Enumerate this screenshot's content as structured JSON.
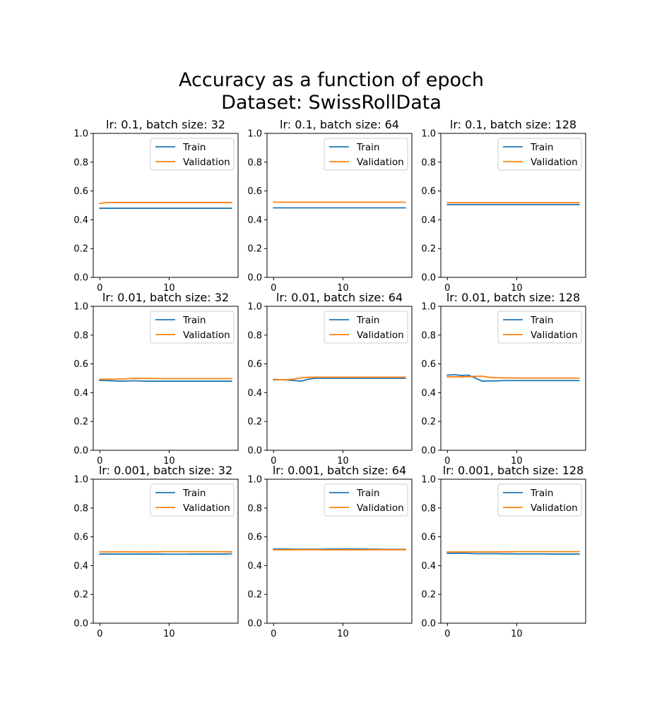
{
  "figure": {
    "title_line1": "Accuracy as a function of epoch",
    "title_line2": "Dataset: SwissRollData"
  },
  "colors": {
    "train": "#1f77b4",
    "validation": "#ff7f0e"
  },
  "chart_data": [
    {
      "type": "line",
      "title": "lr: 0.1, batch size: 32",
      "x": [
        0,
        1,
        2,
        3,
        4,
        5,
        6,
        7,
        8,
        9,
        10,
        11,
        12,
        13,
        14,
        15,
        16,
        17,
        18,
        19
      ],
      "xticks": [
        0,
        10
      ],
      "ylim": [
        0,
        1
      ],
      "yticks": [
        0.0,
        0.2,
        0.4,
        0.6,
        0.8,
        1.0
      ],
      "legend": "upper right",
      "series": [
        {
          "name": "Train",
          "values": [
            0.48,
            0.48,
            0.48,
            0.48,
            0.48,
            0.48,
            0.48,
            0.48,
            0.48,
            0.48,
            0.48,
            0.48,
            0.48,
            0.48,
            0.48,
            0.48,
            0.48,
            0.48,
            0.48,
            0.48
          ]
        },
        {
          "name": "Validation",
          "values": [
            0.513,
            0.52,
            0.52,
            0.52,
            0.52,
            0.52,
            0.52,
            0.52,
            0.52,
            0.52,
            0.52,
            0.52,
            0.52,
            0.52,
            0.52,
            0.52,
            0.52,
            0.52,
            0.52,
            0.52
          ]
        }
      ]
    },
    {
      "type": "line",
      "title": "lr: 0.1, batch size: 64",
      "x": [
        0,
        1,
        2,
        3,
        4,
        5,
        6,
        7,
        8,
        9,
        10,
        11,
        12,
        13,
        14,
        15,
        16,
        17,
        18,
        19
      ],
      "xticks": [
        0,
        10
      ],
      "ylim": [
        0,
        1
      ],
      "yticks": [
        0.0,
        0.2,
        0.4,
        0.6,
        0.8,
        1.0
      ],
      "legend": "upper right",
      "series": [
        {
          "name": "Train",
          "values": [
            0.483,
            0.483,
            0.483,
            0.483,
            0.483,
            0.483,
            0.483,
            0.483,
            0.483,
            0.483,
            0.483,
            0.483,
            0.483,
            0.483,
            0.483,
            0.483,
            0.483,
            0.483,
            0.483,
            0.483
          ]
        },
        {
          "name": "Validation",
          "values": [
            0.522,
            0.522,
            0.522,
            0.522,
            0.522,
            0.522,
            0.522,
            0.522,
            0.522,
            0.522,
            0.522,
            0.522,
            0.522,
            0.522,
            0.522,
            0.522,
            0.522,
            0.522,
            0.522,
            0.522
          ]
        }
      ]
    },
    {
      "type": "line",
      "title": "lr: 0.1, batch size: 128",
      "x": [
        0,
        1,
        2,
        3,
        4,
        5,
        6,
        7,
        8,
        9,
        10,
        11,
        12,
        13,
        14,
        15,
        16,
        17,
        18,
        19
      ],
      "xticks": [
        0,
        10
      ],
      "ylim": [
        0,
        1
      ],
      "yticks": [
        0.0,
        0.2,
        0.4,
        0.6,
        0.8,
        1.0
      ],
      "legend": "upper right",
      "series": [
        {
          "name": "Train",
          "values": [
            0.505,
            0.505,
            0.505,
            0.505,
            0.505,
            0.505,
            0.505,
            0.505,
            0.505,
            0.505,
            0.505,
            0.505,
            0.505,
            0.505,
            0.505,
            0.505,
            0.505,
            0.505,
            0.505,
            0.505
          ]
        },
        {
          "name": "Validation",
          "values": [
            0.518,
            0.518,
            0.518,
            0.518,
            0.518,
            0.518,
            0.518,
            0.518,
            0.518,
            0.518,
            0.518,
            0.518,
            0.518,
            0.518,
            0.518,
            0.518,
            0.518,
            0.518,
            0.518,
            0.518
          ]
        }
      ]
    },
    {
      "type": "line",
      "title": "lr: 0.01, batch size: 32",
      "x": [
        0,
        1,
        2,
        3,
        4,
        5,
        6,
        7,
        8,
        9,
        10,
        11,
        12,
        13,
        14,
        15,
        16,
        17,
        18,
        19
      ],
      "xticks": [
        0,
        10
      ],
      "ylim": [
        0,
        1
      ],
      "yticks": [
        0.0,
        0.2,
        0.4,
        0.6,
        0.8,
        1.0
      ],
      "legend": "upper right",
      "series": [
        {
          "name": "Train",
          "values": [
            0.485,
            0.484,
            0.482,
            0.48,
            0.481,
            0.483,
            0.481,
            0.48,
            0.48,
            0.48,
            0.48,
            0.48,
            0.48,
            0.48,
            0.48,
            0.48,
            0.48,
            0.48,
            0.48,
            0.48
          ]
        },
        {
          "name": "Validation",
          "values": [
            0.493,
            0.493,
            0.494,
            0.495,
            0.497,
            0.499,
            0.499,
            0.499,
            0.498,
            0.498,
            0.498,
            0.498,
            0.498,
            0.498,
            0.498,
            0.498,
            0.498,
            0.498,
            0.498,
            0.498
          ]
        }
      ]
    },
    {
      "type": "line",
      "title": "lr: 0.01, batch size: 64",
      "x": [
        0,
        1,
        2,
        3,
        4,
        5,
        6,
        7,
        8,
        9,
        10,
        11,
        12,
        13,
        14,
        15,
        16,
        17,
        18,
        19
      ],
      "xticks": [
        0,
        10
      ],
      "ylim": [
        0,
        1
      ],
      "yticks": [
        0.0,
        0.2,
        0.4,
        0.6,
        0.8,
        1.0
      ],
      "legend": "upper right",
      "series": [
        {
          "name": "Train",
          "values": [
            0.49,
            0.49,
            0.488,
            0.484,
            0.48,
            0.494,
            0.5,
            0.5,
            0.5,
            0.5,
            0.5,
            0.5,
            0.5,
            0.5,
            0.5,
            0.5,
            0.5,
            0.5,
            0.5,
            0.5
          ]
        },
        {
          "name": "Validation",
          "values": [
            0.493,
            0.49,
            0.49,
            0.495,
            0.503,
            0.507,
            0.508,
            0.508,
            0.508,
            0.508,
            0.508,
            0.508,
            0.508,
            0.508,
            0.508,
            0.508,
            0.508,
            0.508,
            0.508,
            0.508
          ]
        }
      ]
    },
    {
      "type": "line",
      "title": "lr: 0.01, batch size: 128",
      "x": [
        0,
        1,
        2,
        3,
        4,
        5,
        6,
        7,
        8,
        9,
        10,
        11,
        12,
        13,
        14,
        15,
        16,
        17,
        18,
        19
      ],
      "xticks": [
        0,
        10
      ],
      "ylim": [
        0,
        1
      ],
      "yticks": [
        0.0,
        0.2,
        0.4,
        0.6,
        0.8,
        1.0
      ],
      "legend": "upper right",
      "series": [
        {
          "name": "Train",
          "values": [
            0.522,
            0.525,
            0.52,
            0.522,
            0.503,
            0.48,
            0.482,
            0.482,
            0.484,
            0.484,
            0.484,
            0.484,
            0.484,
            0.484,
            0.484,
            0.484,
            0.484,
            0.484,
            0.484,
            0.484
          ]
        },
        {
          "name": "Validation",
          "values": [
            0.51,
            0.51,
            0.51,
            0.51,
            0.514,
            0.514,
            0.507,
            0.505,
            0.503,
            0.503,
            0.502,
            0.502,
            0.502,
            0.502,
            0.502,
            0.502,
            0.502,
            0.502,
            0.502,
            0.502
          ]
        }
      ]
    },
    {
      "type": "line",
      "title": "lr: 0.001, batch size: 32",
      "x": [
        0,
        1,
        2,
        3,
        4,
        5,
        6,
        7,
        8,
        9,
        10,
        11,
        12,
        13,
        14,
        15,
        16,
        17,
        18,
        19
      ],
      "xticks": [
        0,
        10
      ],
      "ylim": [
        0,
        1
      ],
      "yticks": [
        0.0,
        0.2,
        0.4,
        0.6,
        0.8,
        1.0
      ],
      "legend": "upper right",
      "series": [
        {
          "name": "Train",
          "values": [
            0.48,
            0.48,
            0.48,
            0.48,
            0.48,
            0.48,
            0.48,
            0.48,
            0.48,
            0.48,
            0.479,
            0.479,
            0.479,
            0.48,
            0.48,
            0.48,
            0.48,
            0.48,
            0.48,
            0.482
          ]
        },
        {
          "name": "Validation",
          "values": [
            0.495,
            0.495,
            0.495,
            0.496,
            0.496,
            0.495,
            0.495,
            0.495,
            0.496,
            0.497,
            0.497,
            0.497,
            0.497,
            0.497,
            0.497,
            0.497,
            0.497,
            0.497,
            0.496,
            0.496
          ]
        }
      ]
    },
    {
      "type": "line",
      "title": "lr: 0.001, batch size: 64",
      "x": [
        0,
        1,
        2,
        3,
        4,
        5,
        6,
        7,
        8,
        9,
        10,
        11,
        12,
        13,
        14,
        15,
        16,
        17,
        18,
        19
      ],
      "xticks": [
        0,
        10
      ],
      "ylim": [
        0,
        1
      ],
      "yticks": [
        0.0,
        0.2,
        0.4,
        0.6,
        0.8,
        1.0
      ],
      "legend": "upper right",
      "series": [
        {
          "name": "Train",
          "values": [
            0.515,
            0.515,
            0.515,
            0.514,
            0.514,
            0.514,
            0.514,
            0.514,
            0.515,
            0.515,
            0.516,
            0.516,
            0.515,
            0.515,
            0.514,
            0.514,
            0.513,
            0.513,
            0.513,
            0.513
          ]
        },
        {
          "name": "Validation",
          "values": [
            0.51,
            0.51,
            0.51,
            0.51,
            0.51,
            0.51,
            0.51,
            0.51,
            0.51,
            0.51,
            0.51,
            0.51,
            0.51,
            0.51,
            0.51,
            0.51,
            0.51,
            0.51,
            0.51,
            0.51
          ]
        }
      ]
    },
    {
      "type": "line",
      "title": "lr: 0.001, batch size: 128",
      "x": [
        0,
        1,
        2,
        3,
        4,
        5,
        6,
        7,
        8,
        9,
        10,
        11,
        12,
        13,
        14,
        15,
        16,
        17,
        18,
        19
      ],
      "xticks": [
        0,
        10
      ],
      "ylim": [
        0,
        1
      ],
      "yticks": [
        0.0,
        0.2,
        0.4,
        0.6,
        0.8,
        1.0
      ],
      "legend": "upper right",
      "series": [
        {
          "name": "Train",
          "values": [
            0.485,
            0.485,
            0.486,
            0.485,
            0.483,
            0.483,
            0.483,
            0.483,
            0.482,
            0.482,
            0.481,
            0.481,
            0.481,
            0.481,
            0.481,
            0.48,
            0.48,
            0.48,
            0.48,
            0.48
          ]
        },
        {
          "name": "Validation",
          "values": [
            0.495,
            0.495,
            0.495,
            0.495,
            0.495,
            0.495,
            0.495,
            0.495,
            0.496,
            0.496,
            0.497,
            0.497,
            0.497,
            0.497,
            0.497,
            0.497,
            0.497,
            0.497,
            0.497,
            0.497
          ]
        }
      ]
    }
  ]
}
